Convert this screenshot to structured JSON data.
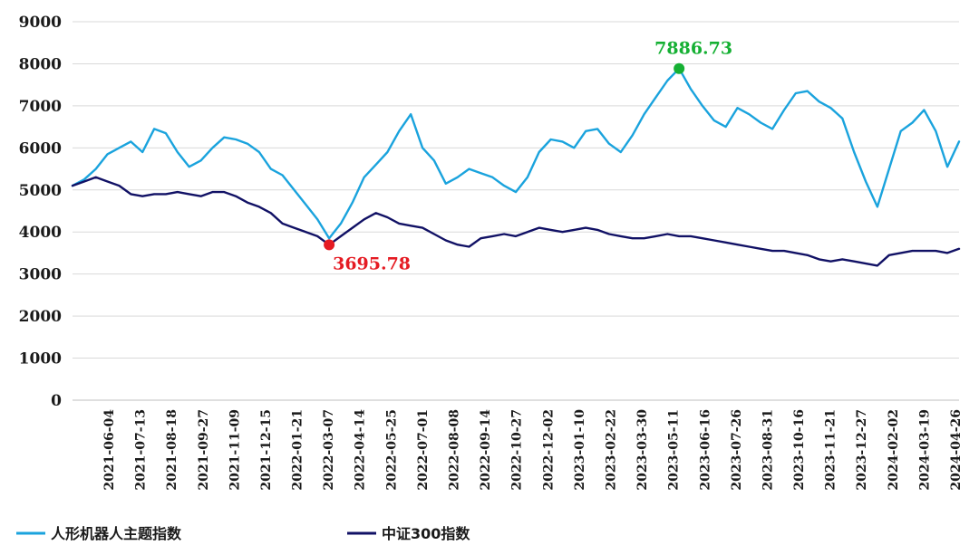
{
  "colors": {
    "series1": "#1aa3dd",
    "series2": "#111165",
    "annotation_high": "#15b033",
    "annotation_low": "#e51b23",
    "grid": "#d9d9d9"
  },
  "chart_data": {
    "type": "line",
    "title": "",
    "xlabel": "",
    "ylabel": "",
    "ylim": [
      0,
      9000
    ],
    "y_ticks": [
      "0",
      "1000",
      "2000",
      "3000",
      "4000",
      "5000",
      "6000",
      "7000",
      "8000",
      "9000"
    ],
    "x_tick_labels": [
      "2021-06-04",
      "2021-07-13",
      "2021-08-18",
      "2021-09-27",
      "2021-11-09",
      "2021-12-15",
      "2022-01-21",
      "2022-03-07",
      "2022-04-14",
      "2022-05-25",
      "2022-07-01",
      "2022-08-08",
      "2022-09-14",
      "2022-10-27",
      "2022-12-02",
      "2023-01-10",
      "2023-02-22",
      "2023-03-30",
      "2023-05-11",
      "2023-06-16",
      "2023-07-26",
      "2023-08-31",
      "2023-10-16",
      "2023-11-21",
      "2023-12-27",
      "2024-02-02",
      "2024-03-19",
      "2024-04-26"
    ],
    "x_period": "2021-05 to 2024-04",
    "grid": "horizontal",
    "legend_position": "bottom",
    "series": [
      {
        "name": "人形机器人主题指数",
        "values": [
          5100,
          5250,
          5500,
          5850,
          6000,
          6150,
          5900,
          6450,
          6350,
          5900,
          5550,
          5700,
          6000,
          6250,
          6200,
          6100,
          5900,
          5500,
          5350,
          5000,
          4650,
          4300,
          3850,
          4200,
          4700,
          5300,
          5600,
          5900,
          6400,
          6800,
          6000,
          5700,
          5150,
          5300,
          5500,
          5400,
          5300,
          5100,
          4950,
          5300,
          5900,
          6200,
          6150,
          6000,
          6400,
          6450,
          6100,
          5900,
          6300,
          6800,
          7200,
          7600,
          7887,
          7400,
          7000,
          6650,
          6500,
          6950,
          6800,
          6600,
          6450,
          6900,
          7300,
          7350,
          7100,
          6950,
          6700,
          5900,
          5200,
          4600,
          5500,
          6400,
          6600,
          6900,
          6400,
          5550,
          6150
        ]
      },
      {
        "name": "中证300指数",
        "values": [
          5100,
          5200,
          5300,
          5200,
          5100,
          4900,
          4850,
          4900,
          4900,
          4950,
          4900,
          4850,
          4950,
          4950,
          4850,
          4700,
          4600,
          4450,
          4200,
          4100,
          4000,
          3900,
          3696,
          3900,
          4100,
          4300,
          4450,
          4350,
          4200,
          4150,
          4100,
          3950,
          3800,
          3700,
          3650,
          3850,
          3900,
          3950,
          3900,
          4000,
          4100,
          4050,
          4000,
          4050,
          4100,
          4050,
          3950,
          3900,
          3850,
          3850,
          3900,
          3950,
          3900,
          3900,
          3850,
          3800,
          3750,
          3700,
          3650,
          3600,
          3550,
          3550,
          3500,
          3450,
          3350,
          3300,
          3350,
          3300,
          3250,
          3200,
          3450,
          3500,
          3550,
          3550,
          3550,
          3500,
          3600
        ]
      }
    ],
    "annotations": [
      {
        "label": "7886.73",
        "series": 0,
        "index": 52,
        "value": 7886.73,
        "position": "above"
      },
      {
        "label": "3695.78",
        "series": 1,
        "index": 22,
        "value": 3695.78,
        "position": "below-right"
      }
    ]
  },
  "legend": {
    "items": [
      {
        "label": "人形机器人主题指数",
        "color": "#1aa3dd"
      },
      {
        "label": "中证300指数",
        "color": "#111165"
      }
    ]
  }
}
